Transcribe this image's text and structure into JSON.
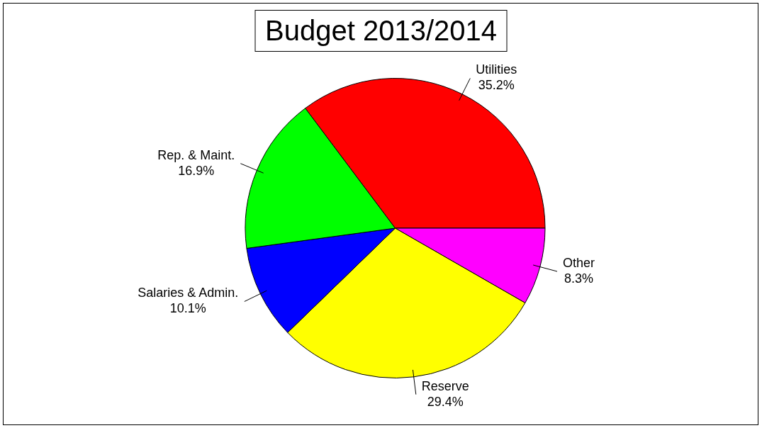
{
  "chart_data": {
    "type": "pie",
    "title": "Budget 2013/2014",
    "categories": [
      "Utilities",
      "Other",
      "Reserve",
      "Salaries & Admin.",
      "Rep. & Maint."
    ],
    "values": [
      35.2,
      8.3,
      29.4,
      10.1,
      16.9
    ],
    "colors": [
      "#ff0000",
      "#ff00ff",
      "#ffff00",
      "#0000ff",
      "#00ff00"
    ],
    "value_labels": [
      "35.2%",
      "8.3%",
      "29.4%",
      "10.1%",
      "16.9%"
    ],
    "legend": false
  }
}
